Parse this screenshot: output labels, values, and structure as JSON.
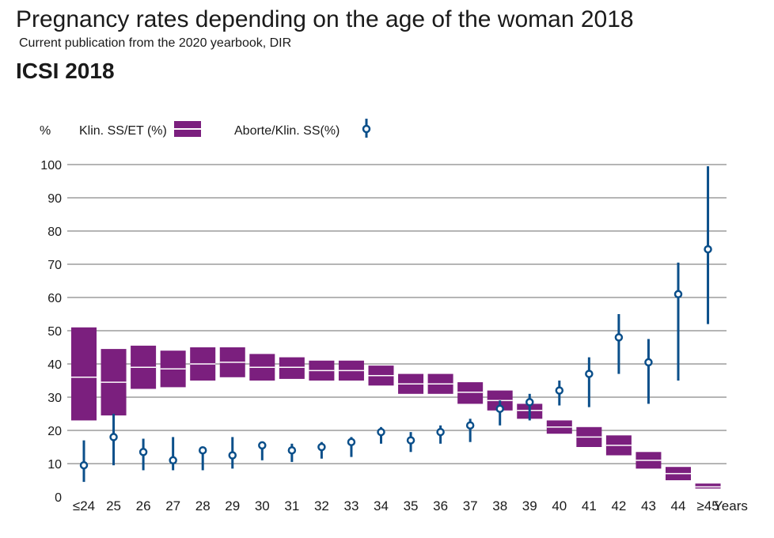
{
  "header": {
    "title": "Pregnancy rates depending on the age of the woman 2018",
    "subtitle": "Current publication from the 2020 yearbook, DIR",
    "section": "ICSI 2018"
  },
  "chart_data": {
    "type": "boxplot-errorbar",
    "ylabel": "%",
    "xlabel": "Years",
    "ylim": [
      0,
      100
    ],
    "yticks": [
      0,
      10,
      20,
      30,
      40,
      50,
      60,
      70,
      80,
      90,
      100
    ],
    "grid": true,
    "legend_position": "top-left",
    "categories": [
      "≤24",
      "25",
      "26",
      "27",
      "28",
      "29",
      "30",
      "31",
      "32",
      "33",
      "34",
      "35",
      "36",
      "37",
      "38",
      "39",
      "40",
      "41",
      "42",
      "43",
      "44",
      "≥45"
    ],
    "series": [
      {
        "name": "Klin. SS/ET (%)",
        "kind": "range-bar",
        "color": "#7b1f7e",
        "values": [
          36,
          34.5,
          39,
          38.5,
          40,
          40.5,
          39,
          39,
          38,
          38,
          36.5,
          34,
          34,
          31.5,
          29,
          26,
          21,
          18,
          15.5,
          11,
          7,
          3
        ],
        "low": [
          23,
          24.5,
          32.5,
          33,
          35,
          36,
          35,
          35.5,
          35,
          35,
          33.5,
          31,
          31,
          28,
          26,
          23.5,
          19,
          15,
          12.5,
          8.5,
          5,
          2.5
        ],
        "high": [
          51,
          44.5,
          45.5,
          44,
          45,
          45,
          43,
          42,
          41,
          41,
          39.5,
          37,
          37,
          34.5,
          32,
          28,
          23,
          21,
          18.5,
          13.5,
          9,
          4
        ]
      },
      {
        "name": "Aborte/Klin. SS(%)",
        "kind": "point-errorbar",
        "color": "#0b4f8a",
        "values": [
          9.5,
          18,
          13.5,
          11,
          14,
          12.5,
          15.5,
          14,
          15,
          16.5,
          19.5,
          17,
          19.5,
          21.5,
          26.5,
          28.5,
          32,
          37,
          48,
          40.5,
          61,
          74.5
        ],
        "low": [
          4.5,
          9.5,
          8,
          8,
          8,
          8.5,
          11,
          10.5,
          11.5,
          12,
          16,
          13.5,
          16,
          16.5,
          21.5,
          23,
          27.5,
          27,
          37,
          28,
          35,
          52
        ],
        "high": [
          17,
          25,
          17.5,
          18,
          null,
          18,
          null,
          16,
          16.5,
          18,
          21,
          19.5,
          21.5,
          23.5,
          29,
          31,
          35,
          42,
          55,
          47.5,
          70.5,
          99.5
        ]
      }
    ]
  }
}
